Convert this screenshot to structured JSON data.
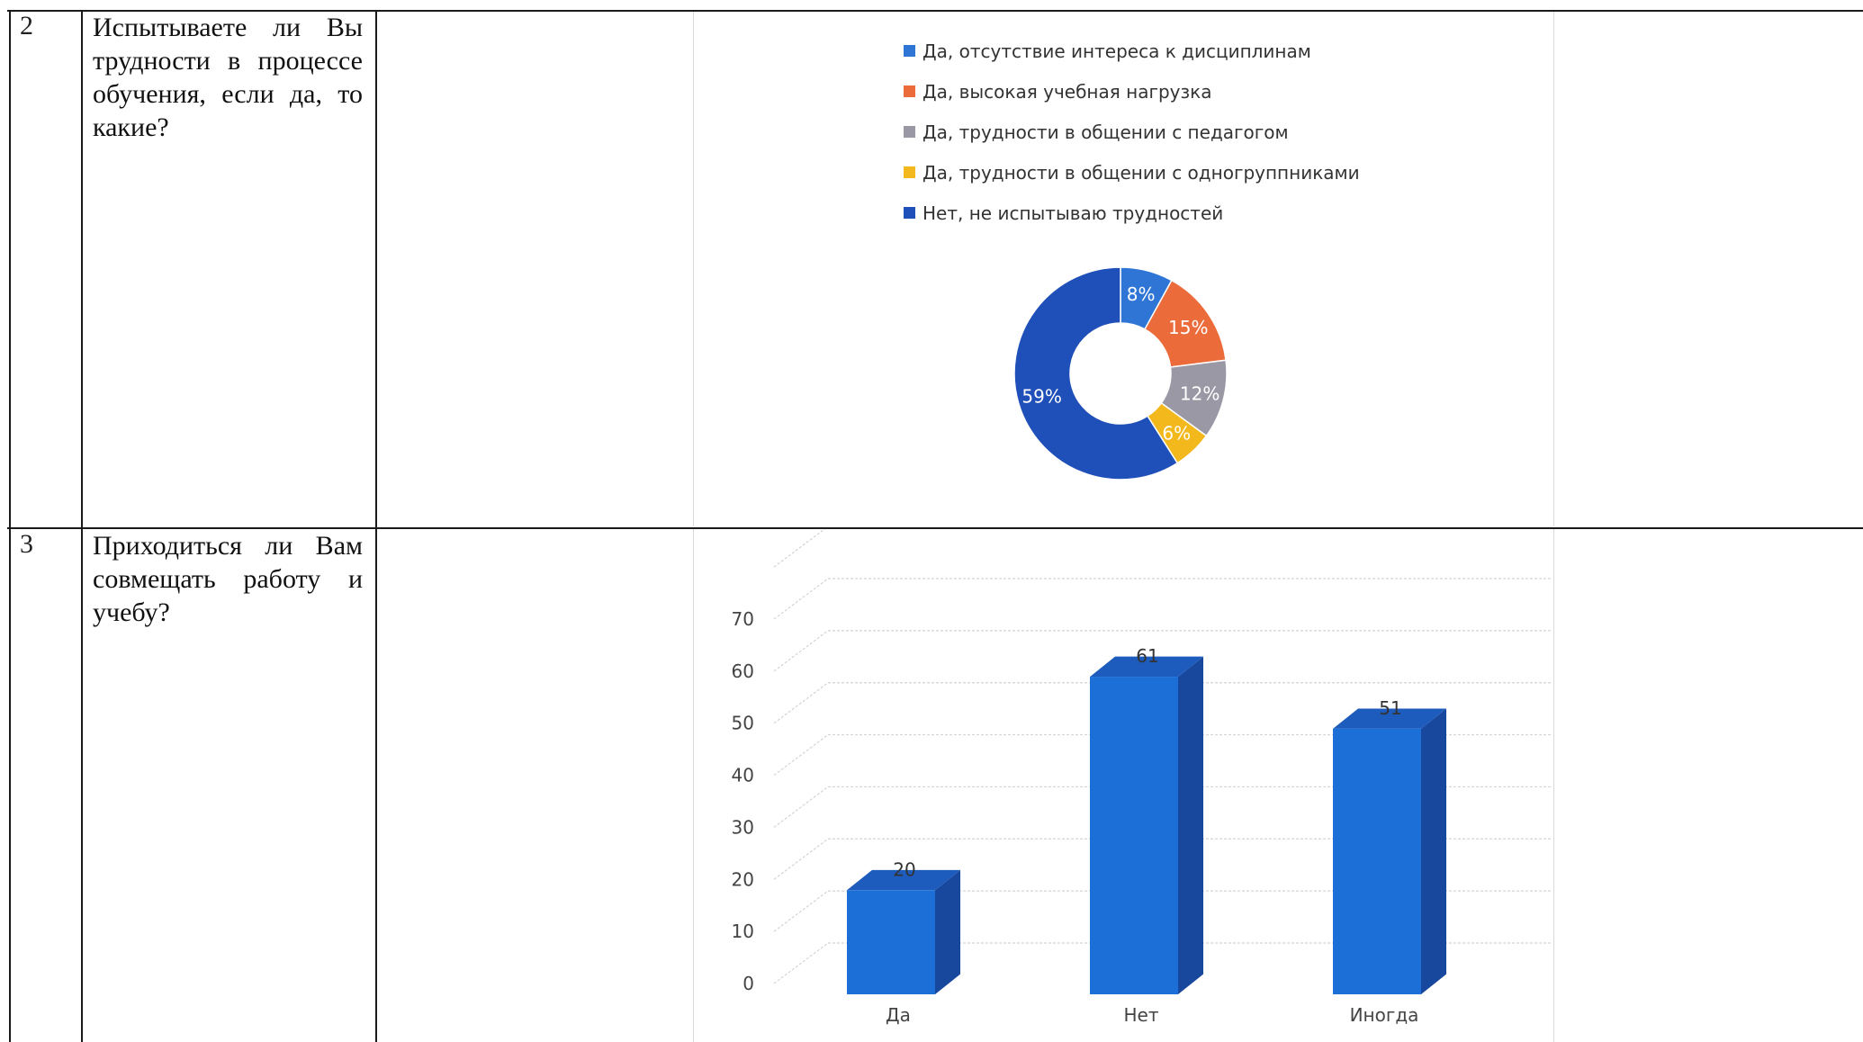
{
  "rows": [
    {
      "number": "2",
      "question": "Испытываете ли Вы трудности в процессе обучения, если да, то какие?"
    },
    {
      "number": "3",
      "question": "Приходиться ли Вам совмещать работу и учебу?"
    }
  ],
  "chart_data": [
    {
      "type": "pie",
      "variant": "donut",
      "title": "",
      "legend_position": "top",
      "categories": [
        "Да, отсутствие интереса к дисциплинам",
        "Да, высокая учебная нагрузка",
        "Да, трудности в общении с педагогом",
        "Да, трудности в общении с одногруппниками",
        "Нет, не испытываю трудностей"
      ],
      "values": [
        8,
        15,
        12,
        6,
        59
      ],
      "labels": [
        "8%",
        "15%",
        "12%",
        "6%",
        "59%"
      ],
      "colors": [
        "#2e75d6",
        "#ec6b3b",
        "#9b98a6",
        "#f2b81c",
        "#1f4fb8"
      ]
    },
    {
      "type": "bar",
      "variant": "3d-column",
      "title": "",
      "categories": [
        "Да",
        "Нет",
        "Иногда"
      ],
      "values": [
        20,
        61,
        51
      ],
      "data_labels": [
        "20",
        "61",
        "51"
      ],
      "ylim": [
        0,
        70
      ],
      "yticks": [
        "0",
        "10",
        "20",
        "30",
        "40",
        "50",
        "60",
        "70"
      ],
      "grid": true,
      "colors": {
        "front": "#1c6fd6",
        "side": "#17489e",
        "top": "#1d5cbc"
      }
    }
  ]
}
